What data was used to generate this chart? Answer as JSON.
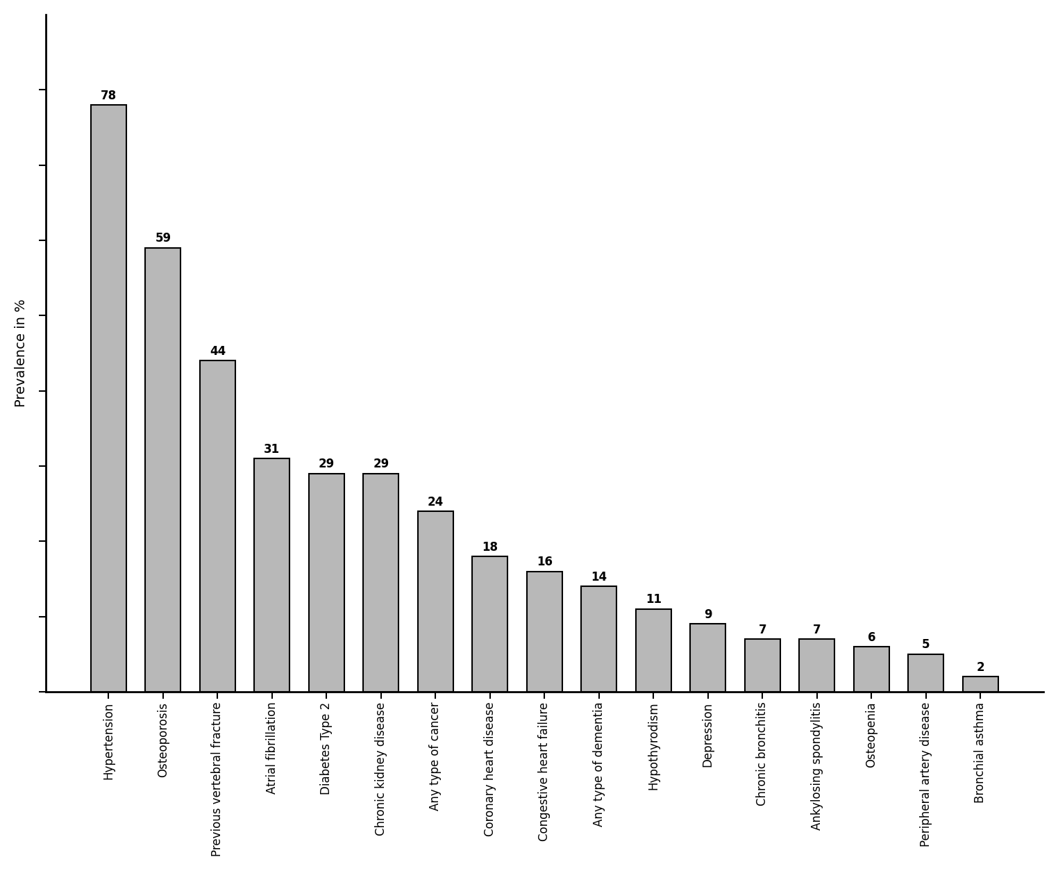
{
  "categories": [
    "Hypertension",
    "Osteoporosis",
    "Previous vertebral fracture",
    "Atrial fibrillation",
    "Diabetes Type 2",
    "Chronic kidney disease",
    "Any type of cancer",
    "Coronary heart disease",
    "Congestive heart failure",
    "Any type of dementia",
    "Hypothyrodism",
    "Depression",
    "Chronic bronchitis",
    "Ankylosing spondylitis",
    "Osteopenia",
    "Peripheral artery disease",
    "Bronchial asthma"
  ],
  "values": [
    78,
    59,
    44,
    31,
    29,
    29,
    24,
    18,
    16,
    14,
    11,
    9,
    7,
    7,
    6,
    5,
    2
  ],
  "bar_color": "#b8b8b8",
  "bar_edgecolor": "#000000",
  "ylabel": "Prevalence in %",
  "ylim": [
    0,
    90
  ],
  "yticks": [
    0,
    10,
    20,
    30,
    40,
    50,
    60,
    70,
    80
  ],
  "background_color": "#ffffff",
  "ylabel_fontsize": 14,
  "tick_label_fontsize": 12,
  "value_label_fontsize": 12,
  "spine_linewidth": 2.0,
  "bar_linewidth": 1.5
}
